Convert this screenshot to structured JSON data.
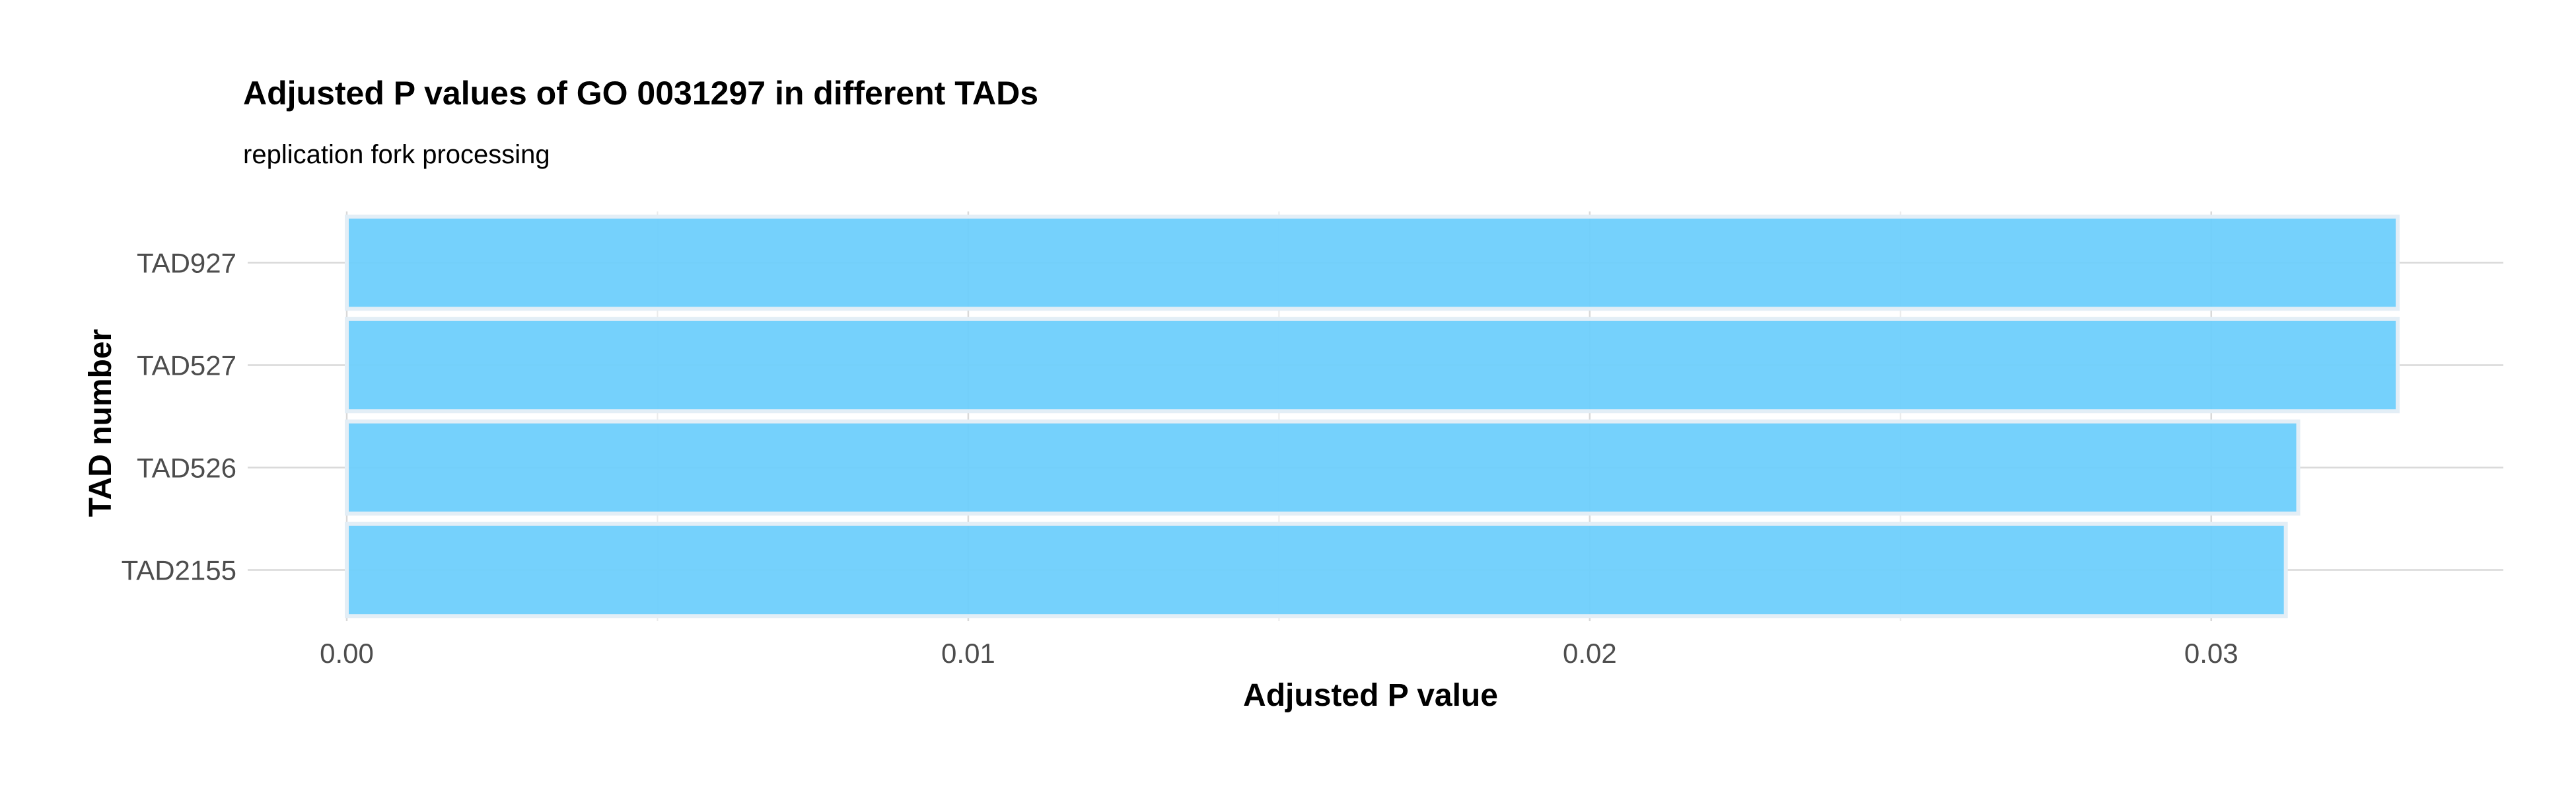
{
  "chart_data": {
    "type": "bar",
    "orientation": "horizontal",
    "title": "Adjusted P values of GO 0031297 in different TADs",
    "subtitle": "replication fork processing",
    "xlabel": "Adjusted P value",
    "ylabel": "TAD number",
    "categories": [
      "TAD927",
      "TAD527",
      "TAD526",
      "TAD2155"
    ],
    "values": [
      0.033,
      0.033,
      0.0314,
      0.0312
    ],
    "xlim": [
      0,
      0.0347
    ],
    "xticks": [
      0.0,
      0.01,
      0.02,
      0.03
    ],
    "xtick_labels": [
      "0.00",
      "0.01",
      "0.02",
      "0.03"
    ],
    "grid": true,
    "colors": {
      "bar_fill": "#6ECFFC",
      "bar_stroke": "#E3EEF6",
      "grid_major": "#D9D9D9",
      "grid_minor": "#EBEBEB"
    }
  }
}
